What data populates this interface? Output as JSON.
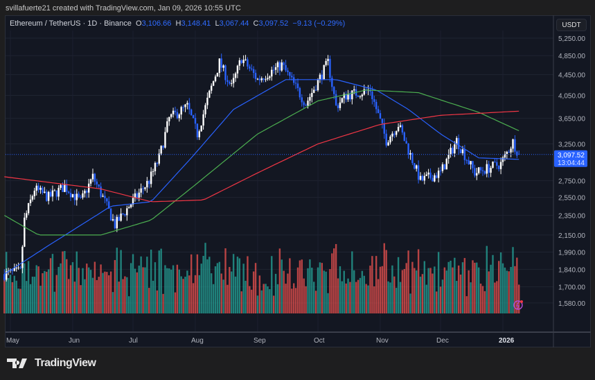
{
  "header": {
    "credit": "svillafuerte21 created with TradingView.com, Jan 09, 2026 10:55 UTC"
  },
  "legend": {
    "symbol": "Ethereum / TetherUS · 1D · Binance",
    "o_label": "O",
    "o": "3,106.66",
    "h_label": "H",
    "h": "3,148.41",
    "l_label": "L",
    "l": "3,067.44",
    "c_label": "C",
    "c": "3,097.52",
    "change": "−9.13 (−0.29%)"
  },
  "currency": "USDT",
  "price_tag": {
    "price": "3,097.52",
    "countdown": "13:04:44"
  },
  "brand": "TradingView",
  "colors": {
    "up": "#ffffff",
    "down": "#2962ff",
    "vol_up": "#26a69a",
    "vol_down": "#ef5350",
    "ma_blue": "#2962ff",
    "ma_green": "#4caf50",
    "ma_red": "#f23645",
    "bg": "#131722"
  },
  "chart_data": {
    "type": "candlestick",
    "scale": "log",
    "grid": true,
    "ylim": [
      1500,
      5400
    ],
    "y_ticks": [
      "5,250.00",
      "4,850.00",
      "4,450.00",
      "4,050.00",
      "3,650.00",
      "3,250.00",
      "2,750.00",
      "2,550.00",
      "2,350.00",
      "2,150.00",
      "1,990.00",
      "1,840.00",
      "1,700.00",
      "1,580.00"
    ],
    "x_ticks": [
      {
        "label": "May",
        "date": "2025-05-01"
      },
      {
        "label": "Jun",
        "date": "2025-06-01"
      },
      {
        "label": "Jul",
        "date": "2025-07-01"
      },
      {
        "label": "Aug",
        "date": "2025-08-01"
      },
      {
        "label": "Sep",
        "date": "2025-09-01"
      },
      {
        "label": "Oct",
        "date": "2025-10-01"
      },
      {
        "label": "Nov",
        "date": "2025-11-01"
      },
      {
        "label": "Dec",
        "date": "2025-12-01"
      },
      {
        "label": "2026",
        "date": "2026-01-01"
      }
    ],
    "close_anchors": [
      [
        "2025-04-28",
        1800
      ],
      [
        "2025-05-06",
        1820
      ],
      [
        "2025-05-08",
        2300
      ],
      [
        "2025-05-13",
        2650
      ],
      [
        "2025-05-20",
        2550
      ],
      [
        "2025-05-28",
        2680
      ],
      [
        "2025-06-05",
        2500
      ],
      [
        "2025-06-11",
        2800
      ],
      [
        "2025-06-17",
        2500
      ],
      [
        "2025-06-22",
        2250
      ],
      [
        "2025-06-30",
        2480
      ],
      [
        "2025-07-09",
        2750
      ],
      [
        "2025-07-14",
        3050
      ],
      [
        "2025-07-19",
        3650
      ],
      [
        "2025-07-28",
        3850
      ],
      [
        "2025-08-02",
        3400
      ],
      [
        "2025-08-09",
        4200
      ],
      [
        "2025-08-13",
        4700
      ],
      [
        "2025-08-19",
        4200
      ],
      [
        "2025-08-24",
        4800
      ],
      [
        "2025-09-01",
        4350
      ],
      [
        "2025-09-13",
        4650
      ],
      [
        "2025-09-25",
        3900
      ],
      [
        "2025-10-06",
        4700
      ],
      [
        "2025-10-10",
        3850
      ],
      [
        "2025-10-15",
        4050
      ],
      [
        "2025-10-27",
        4150
      ],
      [
        "2025-11-04",
        3300
      ],
      [
        "2025-11-10",
        3550
      ],
      [
        "2025-11-21",
        2750
      ],
      [
        "2025-12-01",
        2850
      ],
      [
        "2025-12-09",
        3300
      ],
      [
        "2025-12-18",
        2850
      ],
      [
        "2025-12-31",
        2970
      ],
      [
        "2026-01-06",
        3280
      ],
      [
        "2026-01-09",
        3097.52
      ]
    ],
    "moving_averages": [
      {
        "color": "#2962ff",
        "points": [
          [
            "2025-04-28",
            1800
          ],
          [
            "2025-05-20",
            2050
          ],
          [
            "2025-06-20",
            2450
          ],
          [
            "2025-07-10",
            2500
          ],
          [
            "2025-07-30",
            3050
          ],
          [
            "2025-08-20",
            3800
          ],
          [
            "2025-09-15",
            4350
          ],
          [
            "2025-10-10",
            4350
          ],
          [
            "2025-10-30",
            4150
          ],
          [
            "2025-11-15",
            3800
          ],
          [
            "2025-12-01",
            3400
          ],
          [
            "2025-12-20",
            3050
          ],
          [
            "2026-01-09",
            3030
          ]
        ]
      },
      {
        "color": "#4caf50",
        "points": [
          [
            "2025-04-28",
            2350
          ],
          [
            "2025-05-15",
            2150
          ],
          [
            "2025-06-15",
            2150
          ],
          [
            "2025-07-10",
            2300
          ],
          [
            "2025-08-01",
            2700
          ],
          [
            "2025-09-01",
            3400
          ],
          [
            "2025-10-01",
            3950
          ],
          [
            "2025-10-25",
            4150
          ],
          [
            "2025-11-20",
            4100
          ],
          [
            "2025-12-20",
            3750
          ],
          [
            "2026-01-09",
            3450
          ]
        ]
      },
      {
        "color": "#f23645",
        "points": [
          [
            "2025-04-28",
            2800
          ],
          [
            "2025-06-15",
            2650
          ],
          [
            "2025-07-10",
            2500
          ],
          [
            "2025-08-05",
            2520
          ],
          [
            "2025-09-01",
            2850
          ],
          [
            "2025-10-01",
            3250
          ],
          [
            "2025-11-01",
            3550
          ],
          [
            "2025-12-01",
            3700
          ],
          [
            "2026-01-09",
            3770
          ]
        ]
      }
    ]
  }
}
